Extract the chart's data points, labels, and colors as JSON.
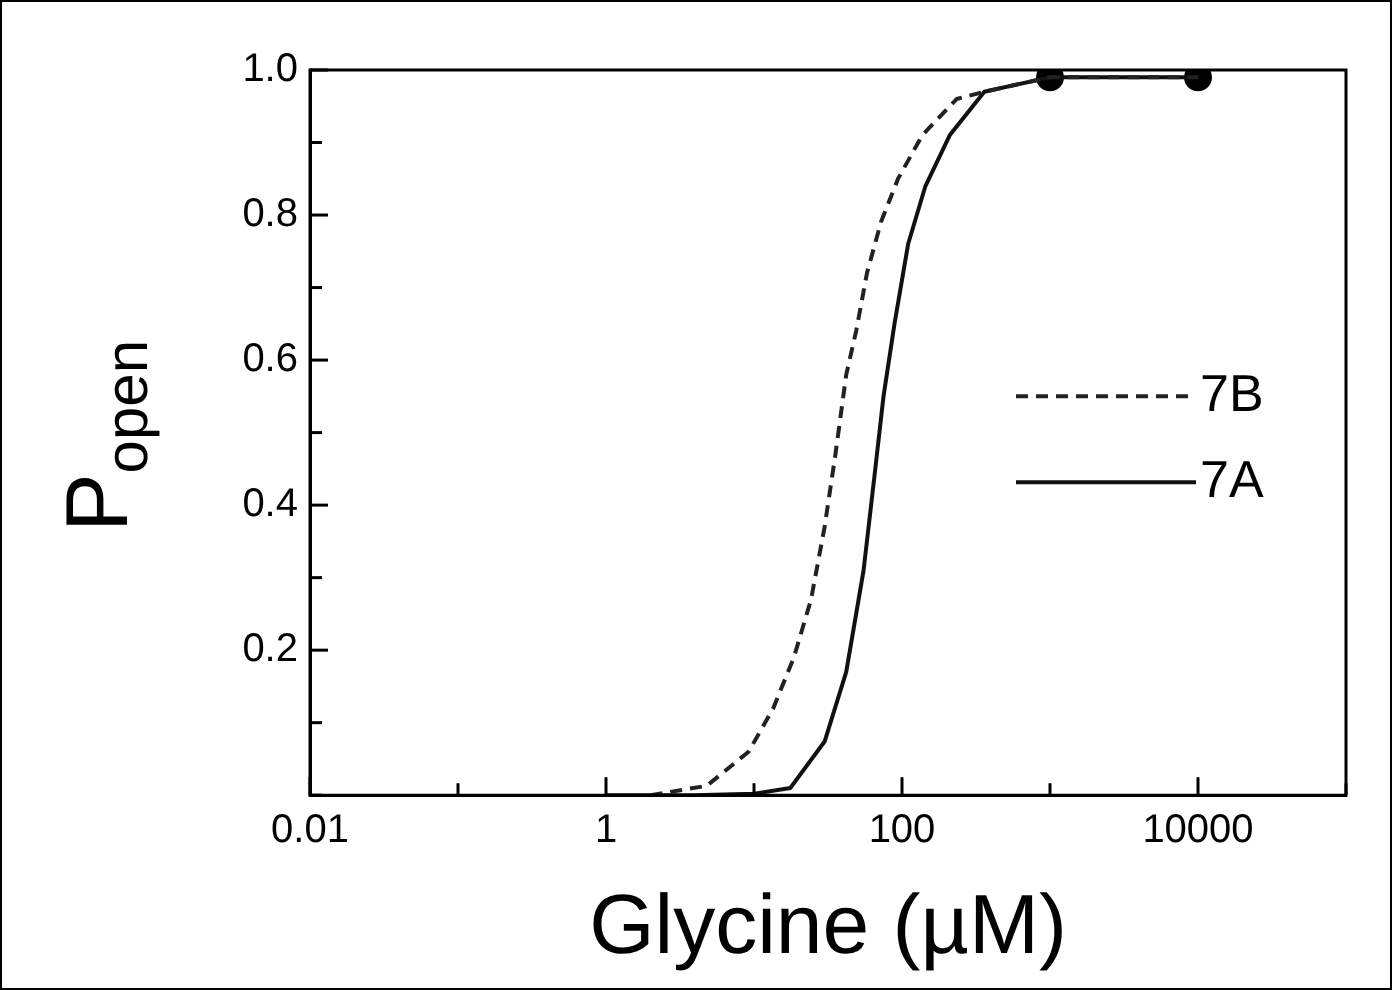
{
  "chart_data": {
    "type": "line",
    "xlabel": "Glycine (µM)",
    "ylabel": "P$_{open}$",
    "log": "x",
    "legend": "right",
    "xlim": [
      0.01,
      100000
    ],
    "xticks": [
      0.01,
      {
        "value": 0.1,
        "label": null
      },
      1,
      {
        "value": 10,
        "label": null
      },
      100,
      {
        "value": 1000,
        "label": null
      },
      10000,
      {
        "value": 100000,
        "label": null
      }
    ],
    "ylim": [
      0,
      1
    ],
    "yticks": [
      {
        "value": 0,
        "label": null
      },
      {
        "value": 0.1,
        "label": null
      },
      0.2,
      {
        "value": 0.3,
        "label": null
      },
      0.4,
      {
        "value": 0.5,
        "label": null
      },
      0.6,
      {
        "value": 0.7,
        "label": null
      },
      0.8,
      {
        "value": 0.9,
        "label": null
      },
      {
        "value": 1,
        "label": "1.0"
      }
    ],
    "series": [
      {
        "name": "7B",
        "color": "#222222",
        "line_style": "dashed",
        "marker": "none",
        "x": [
          2,
          4.8,
          9.2,
          13.5,
          18.6,
          24.3,
          30,
          35.5,
          42,
          49,
          58,
          72,
          94,
          137,
          234,
          360,
          1000,
          10000
        ],
        "values": [
          0,
          0.013,
          0.06,
          0.12,
          0.19,
          0.27,
          0.37,
          0.47,
          0.58,
          0.64,
          0.72,
          0.79,
          0.85,
          0.91,
          0.96,
          0.97,
          0.99,
          0.99
        ]
      },
      {
        "name": "7A",
        "color": "#111111",
        "line_style": "solid",
        "marker": "none",
        "x": [
          1,
          3.9,
          10,
          17.6,
          30,
          42,
          55,
          66,
          75,
          89,
          110,
          144,
          210,
          360,
          1000,
          10000
        ],
        "values": [
          0,
          0,
          0.002,
          0.01,
          0.074,
          0.17,
          0.31,
          0.45,
          0.55,
          0.65,
          0.76,
          0.84,
          0.91,
          0.97,
          0.99,
          0.99
        ]
      },
      {
        "type": "scatter",
        "color": "#000000",
        "marker": "circle",
        "x": [
          1000,
          10000
        ],
        "values": [
          0.99,
          0.99
        ]
      }
    ]
  }
}
